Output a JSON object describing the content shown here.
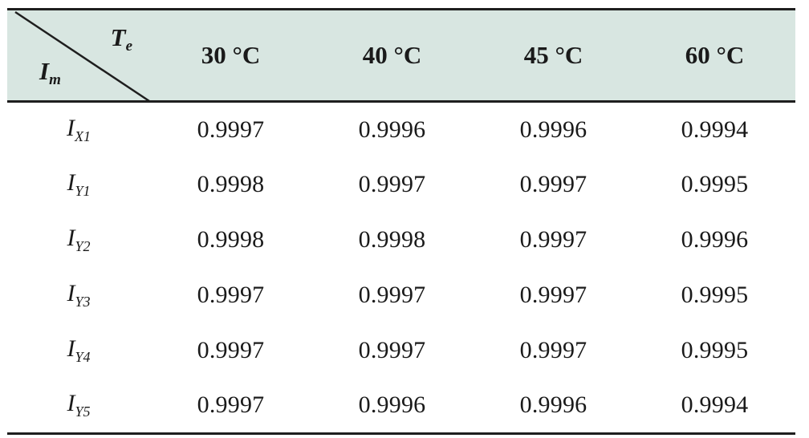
{
  "header": {
    "corner_top": "T",
    "corner_top_sub": "e",
    "corner_bottom": "I",
    "corner_bottom_sub": "m",
    "columns": [
      "30 °C",
      "40 °C",
      "45 °C",
      "60 °C"
    ]
  },
  "rows": [
    {
      "label": "I",
      "sub": "X1",
      "values": [
        "0.9997",
        "0.9996",
        "0.9996",
        "0.9994"
      ]
    },
    {
      "label": "I",
      "sub": "Y1",
      "values": [
        "0.9998",
        "0.9997",
        "0.9997",
        "0.9995"
      ]
    },
    {
      "label": "I",
      "sub": "Y2",
      "values": [
        "0.9998",
        "0.9998",
        "0.9997",
        "0.9996"
      ]
    },
    {
      "label": "I",
      "sub": "Y3",
      "values": [
        "0.9997",
        "0.9997",
        "0.9997",
        "0.9995"
      ]
    },
    {
      "label": "I",
      "sub": "Y4",
      "values": [
        "0.9997",
        "0.9997",
        "0.9997",
        "0.9995"
      ]
    },
    {
      "label": "I",
      "sub": "Y5",
      "values": [
        "0.9997",
        "0.9996",
        "0.9996",
        "0.9994"
      ]
    }
  ],
  "colors": {
    "header_bg": "#d8e6e1",
    "rule": "#1e1e1e",
    "text": "#1a1a1a"
  }
}
